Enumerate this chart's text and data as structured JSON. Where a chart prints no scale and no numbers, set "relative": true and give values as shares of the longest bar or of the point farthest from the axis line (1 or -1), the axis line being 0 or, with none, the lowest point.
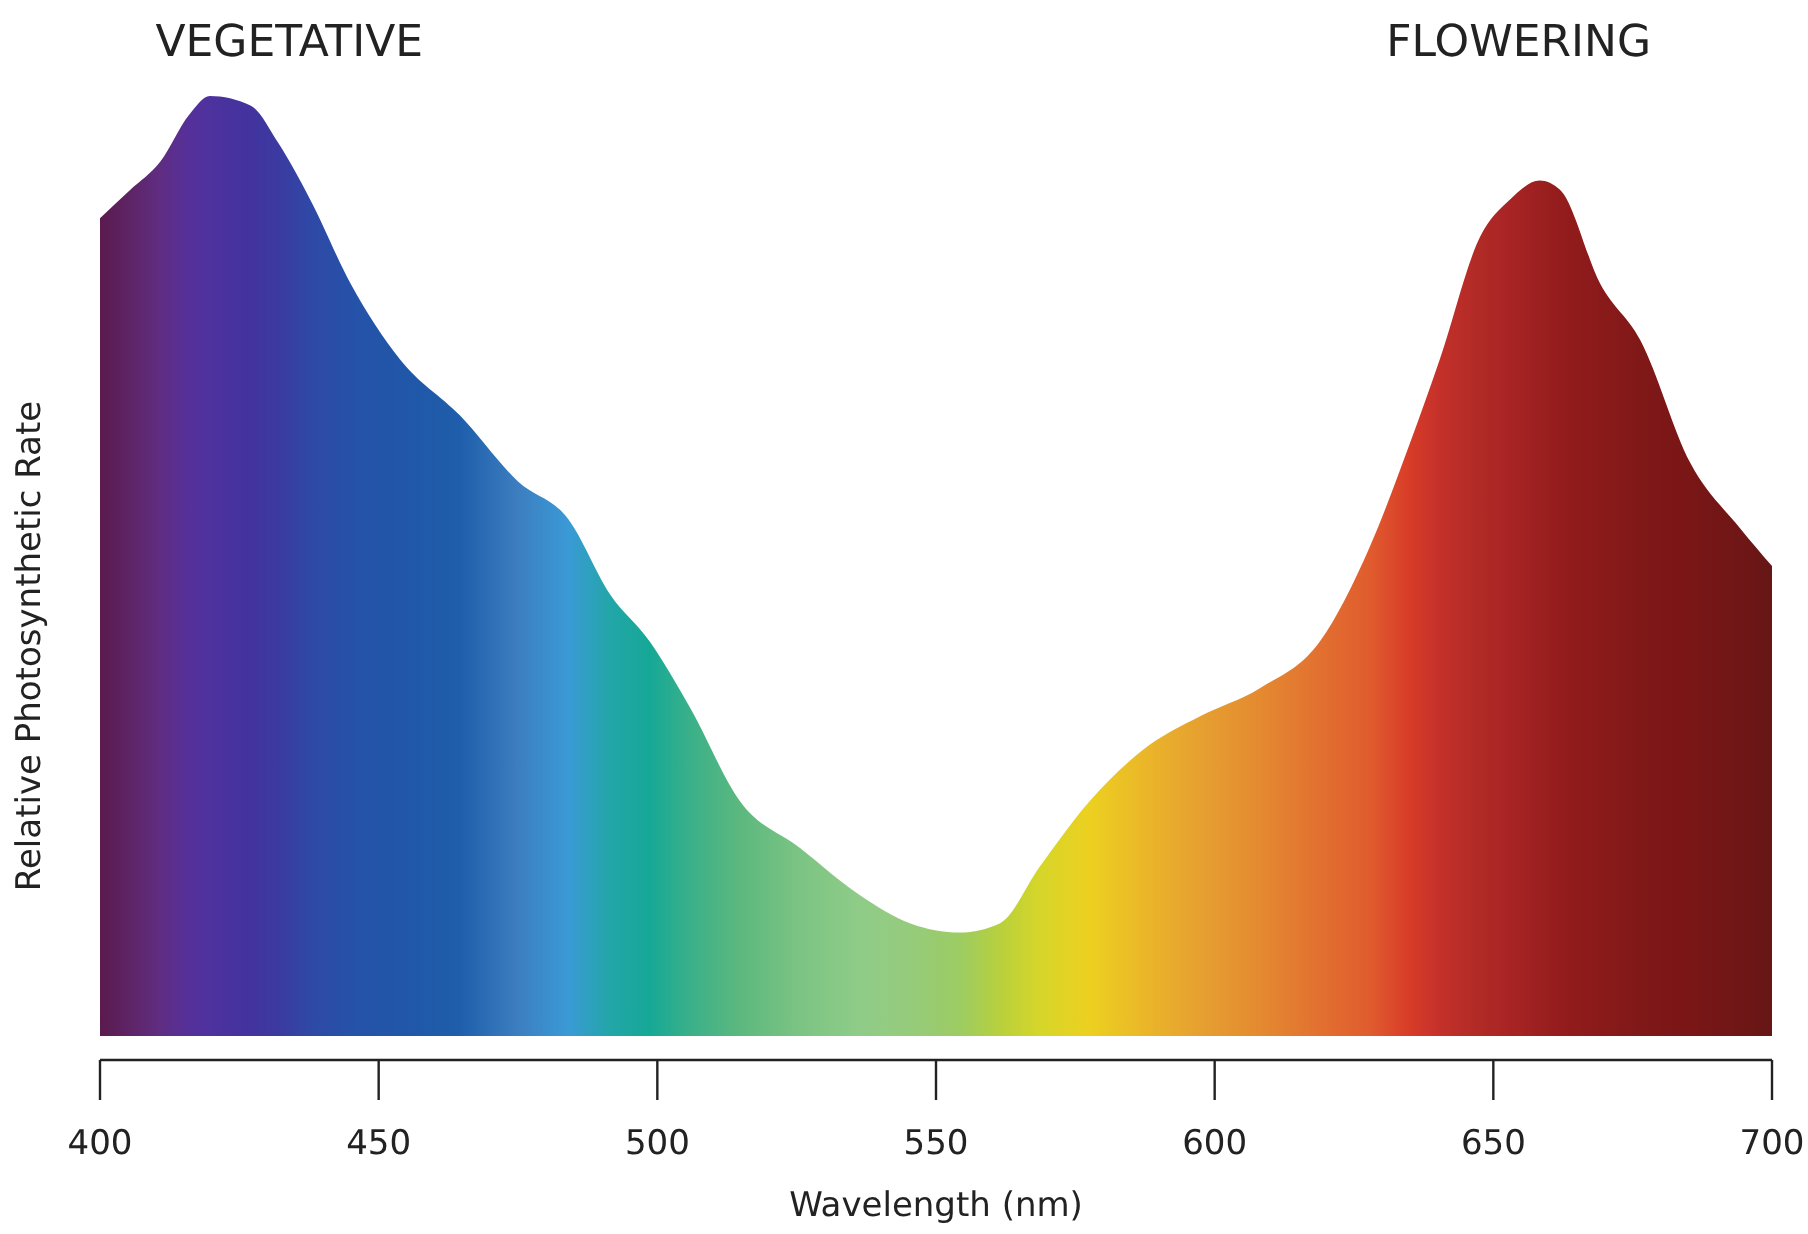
{
  "chart_data": {
    "type": "area",
    "relative": true,
    "xlabel": "Wavelength (nm)",
    "ylabel": "Relative Photosynthetic Rate",
    "annotations": [
      "VEGETATIVE",
      "FLOWERING"
    ],
    "xlim": [
      400,
      700
    ],
    "xticks": [
      400,
      450,
      500,
      550,
      600,
      650,
      700
    ],
    "tick_labels": "x",
    "grid": false,
    "x": [
      400,
      405.4,
      410.8,
      416,
      419.7,
      427,
      432,
      437.7,
      445,
      453.8,
      464.6,
      475,
      484,
      491.5,
      498.6,
      505.8,
      514.8,
      525.6,
      536.3,
      545.3,
      554.3,
      561.5,
      568.6,
      577.6,
      588.4,
      597.3,
      608.1,
      618.9,
      627.8,
      635,
      640.4,
      647.6,
      653,
      658.3,
      662,
      669.2,
      676.4,
      685.3,
      694.3,
      700
    ],
    "series": [
      {
        "values": [
          0.87,
          0.9,
          0.93,
          0.98,
          1,
          0.99,
          0.95,
          0.89,
          0.8,
          0.72,
          0.66,
          0.59,
          0.55,
          0.47,
          0.42,
          0.35,
          0.25,
          0.2,
          0.15,
          0.12,
          0.11,
          0.12,
          0.18,
          0.25,
          0.31,
          0.34,
          0.37,
          0.42,
          0.52,
          0.63,
          0.72,
          0.85,
          0.89,
          0.91,
          0.9,
          0.8,
          0.74,
          0.61,
          0.54,
          0.5
        ],
        "colors": [
          "#5a1a4e",
          "#5e2466",
          "#5f2d82",
          "#55309a",
          "#4e329e",
          "#42339f",
          "#3b3aa0",
          "#2f48a6",
          "#2552a8",
          "#2156a8",
          "#1e5eab",
          "#3c7ec0",
          "#3a9ad6",
          "#22a6a8",
          "#16a896",
          "#3ab08a",
          "#5cb87e",
          "#7cc484",
          "#8fcc88",
          "#96cb7c",
          "#9ccc62",
          "#b8d03c",
          "#d6d62a",
          "#ecd020",
          "#eab42a",
          "#e6a030",
          "#e48a30",
          "#e27030",
          "#e05c2e",
          "#d83c28",
          "#c4302a",
          "#b02a26",
          "#a82424",
          "#9c2020",
          "#941c1c",
          "#8a1a1a",
          "#801818",
          "#7a1616",
          "#701616",
          "#661616"
        ]
      }
    ]
  }
}
